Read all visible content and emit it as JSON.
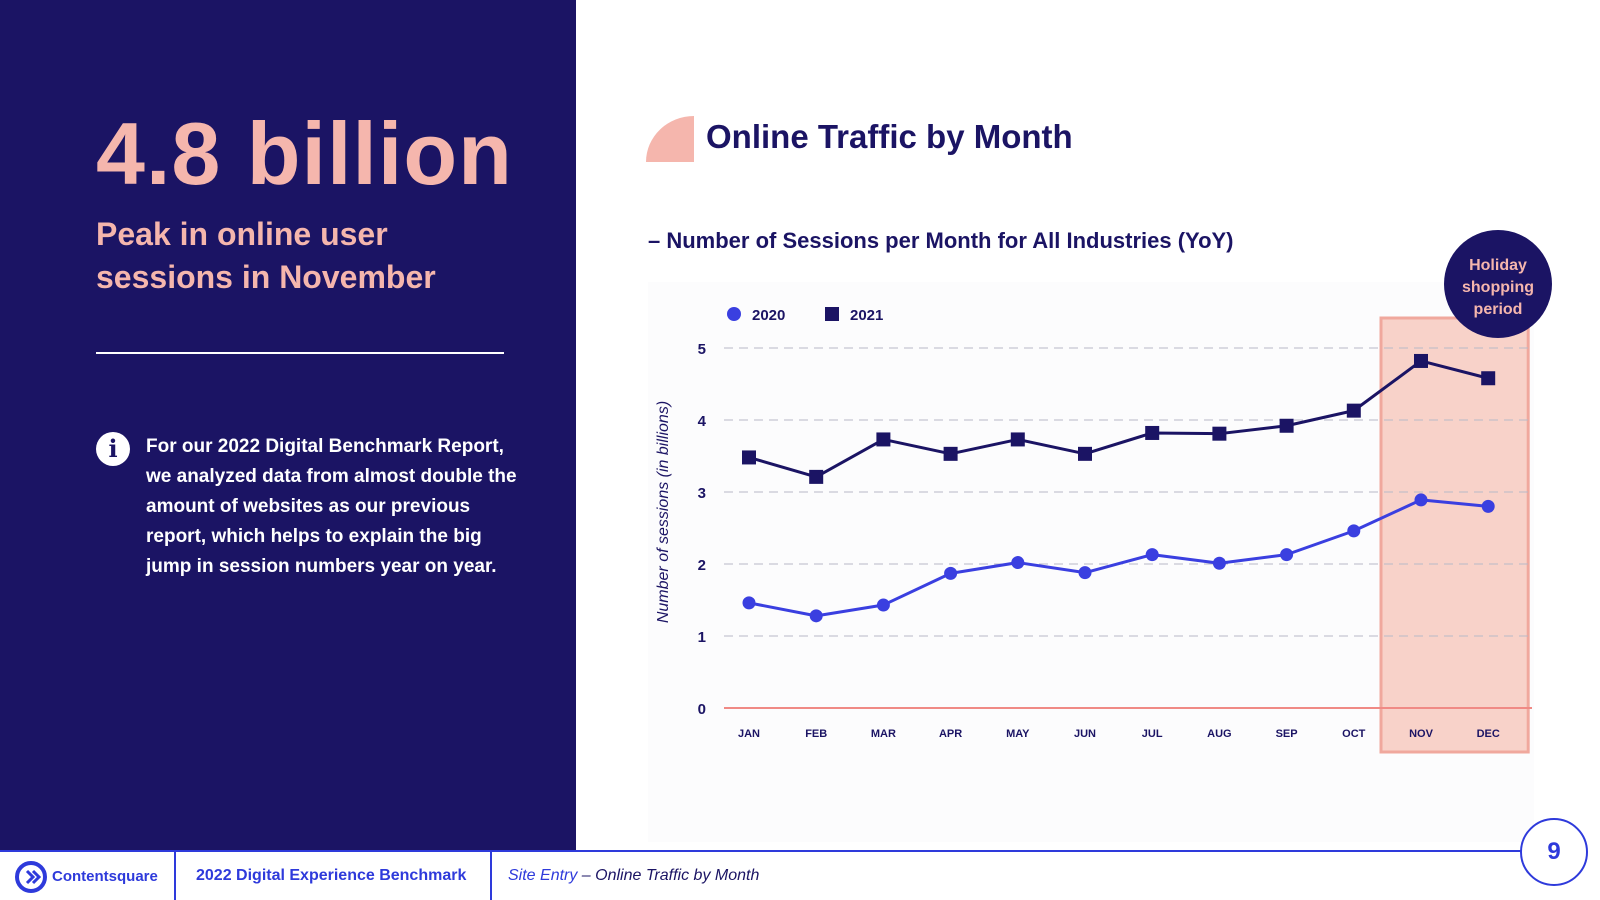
{
  "left_panel": {
    "big_stat": "4.8 billion",
    "subtitle": "Peak in online user sessions in November",
    "info_text": "For our 2022 Digital Benchmark Report, we analyzed data from almost double the amount of websites as our previous report, which helps to explain the big jump in session numbers year on year."
  },
  "chart_header": {
    "title": "Online Traffic by Month",
    "subtitle": "– Number of Sessions per Month for All Industries (YoY)"
  },
  "chart_data": {
    "type": "line",
    "title": "Number of Sessions per Month for All Industries (YoY)",
    "xlabel": "",
    "ylabel": "Number of sessions (in billions)",
    "categories": [
      "JAN",
      "FEB",
      "MAR",
      "APR",
      "MAY",
      "JUN",
      "JUL",
      "AUG",
      "SEP",
      "OCT",
      "NOV",
      "DEC"
    ],
    "ylim": [
      0,
      5
    ],
    "yticks": [
      "0",
      "1",
      "2",
      "3",
      "4",
      "5"
    ],
    "grid": true,
    "legend_position": "top-left",
    "series": [
      {
        "name": "2020",
        "marker": "circle",
        "color": "#3a3fe0",
        "values": [
          1.46,
          1.28,
          1.43,
          1.87,
          2.02,
          1.88,
          2.13,
          2.01,
          2.13,
          2.46,
          2.89,
          2.8
        ]
      },
      {
        "name": "2021",
        "marker": "square",
        "color": "#1b1464",
        "values": [
          3.48,
          3.21,
          3.73,
          3.53,
          3.73,
          3.53,
          3.82,
          3.81,
          3.92,
          4.13,
          4.82,
          4.58
        ]
      }
    ],
    "highlight": {
      "start": "NOV",
      "end": "DEC",
      "label": "Holiday shopping period",
      "label_lines": [
        "Holiday",
        "shopping",
        "period"
      ],
      "color": "#f8d2c9",
      "border_color": "#f0a89d"
    }
  },
  "footer": {
    "brand": "Contentsquare",
    "report": "2022 Digital Experience Benchmark",
    "crumb_section": "Site Entry",
    "crumb_page": " – Online Traffic by Month",
    "page_number": "9"
  },
  "colors": {
    "navy": "#1b1464",
    "pink": "#f5b6ad",
    "blue": "#2e3adb"
  }
}
